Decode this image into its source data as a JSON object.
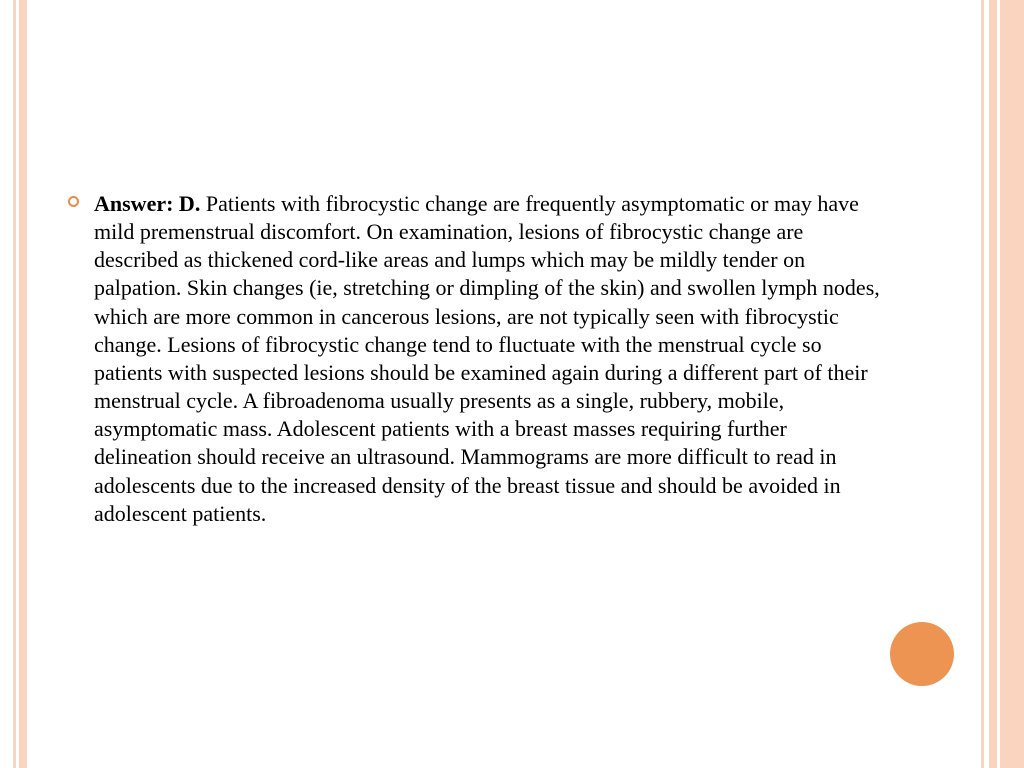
{
  "style": {
    "border_color": "#fad4be",
    "bullet_color": "#e98c4a",
    "circle_color": "#ed9452",
    "text_color": "#000000",
    "background_color": "#ffffff",
    "font_family": "Georgia, 'Times New Roman', serif",
    "body_fontsize": 22
  },
  "bullet": {
    "label": "Answer:  D.   ",
    "body": "Patients with fibrocystic change are frequently asymptomatic or may have mild premenstrual discomfort.  On examination, lesions of fibrocystic change are described as thickened cord-like areas and lumps which may be mildly tender on palpation.  Skin changes (ie, stretching or dimpling of the skin) and swollen lymph nodes, which are more common in cancerous lesions, are not typically seen with fibrocystic change.  Lesions of fibrocystic change tend to fluctuate with the menstrual cycle so patients with suspected lesions should be examined again during a different part of their menstrual cycle. A fibroadenoma usually presents as a single, rubbery, mobile, asymptomatic mass.  Adolescent patients with a breast masses requiring further delineation should receive an ultrasound.  Mammograms are more difficult to read in adolescents due to the increased density of the breast tissue and should be avoided in adolescent patients."
  }
}
